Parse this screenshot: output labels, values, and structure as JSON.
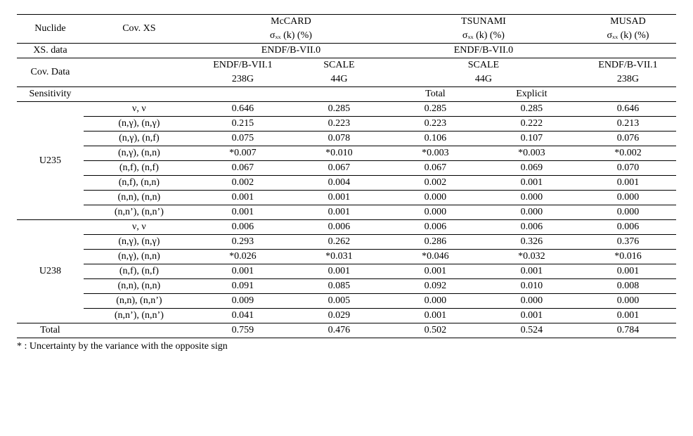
{
  "header": {
    "nuclide": "Nuclide",
    "covxs": "Cov. XS",
    "mccard": "McCARD",
    "tsunami": "TSUNAMI",
    "musad": "MUSAD",
    "sigma": "σₓₓ (k) (%)",
    "xs_data": "XS. data",
    "endf0": "ENDF/B-VII.0",
    "cov_data": "Cov. Data",
    "endf1_a": "ENDF/B-VII.1",
    "g238_a": "238G",
    "scale_a": "SCALE",
    "g44_a": "44G",
    "scale_b": "SCALE",
    "g44_b": "44G",
    "endf1_b": "ENDF/B-VII.1",
    "g238_b": "238G",
    "sensitivity": "Sensitivity",
    "total_lbl": "Total",
    "explicit_lbl": "Explicit"
  },
  "u235": {
    "label": "U235",
    "rows": [
      {
        "cov": "ν, ν",
        "a": "0.646",
        "b": "0.285",
        "c": "0.285",
        "d": "0.285",
        "e": "0.646"
      },
      {
        "cov": "(n,γ), (n,γ)",
        "a": "0.215",
        "b": "0.223",
        "c": "0.223",
        "d": "0.222",
        "e": "0.213"
      },
      {
        "cov": "(n,γ), (n,f)",
        "a": "0.075",
        "b": "0.078",
        "c": "0.106",
        "d": "0.107",
        "e": "0.076"
      },
      {
        "cov": "(n,γ), (n,n)",
        "a": "*0.007",
        "b": "*0.010",
        "c": "*0.003",
        "d": "*0.003",
        "e": "*0.002"
      },
      {
        "cov": "(n,f), (n,f)",
        "a": "0.067",
        "b": "0.067",
        "c": "0.067",
        "d": "0.069",
        "e": "0.070"
      },
      {
        "cov": "(n,f), (n,n)",
        "a": "0.002",
        "b": "0.004",
        "c": "0.002",
        "d": "0.001",
        "e": "0.001"
      },
      {
        "cov": "(n,n), (n,n)",
        "a": "0.001",
        "b": "0.001",
        "c": "0.000",
        "d": "0.000",
        "e": "0.000"
      },
      {
        "cov": "(n,n’), (n,n’)",
        "a": "0.001",
        "b": "0.001",
        "c": "0.000",
        "d": "0.000",
        "e": "0.000"
      }
    ]
  },
  "u238": {
    "label": "U238",
    "rows": [
      {
        "cov": "ν, ν",
        "a": "0.006",
        "b": "0.006",
        "c": "0.006",
        "d": "0.006",
        "e": "0.006"
      },
      {
        "cov": "(n,γ), (n,γ)",
        "a": "0.293",
        "b": "0.262",
        "c": "0.286",
        "d": "0.326",
        "e": "0.376"
      },
      {
        "cov": "(n,γ), (n,n)",
        "a": "*0.026",
        "b": "*0.031",
        "c": "*0.046",
        "d": "*0.032",
        "e": "*0.016"
      },
      {
        "cov": "(n,f), (n,f)",
        "a": "0.001",
        "b": "0.001",
        "c": "0.001",
        "d": "0.001",
        "e": "0.001"
      },
      {
        "cov": "(n,n), (n,n)",
        "a": "0.091",
        "b": "0.085",
        "c": "0.092",
        "d": "0.010",
        "e": "0.008"
      },
      {
        "cov": "(n,n), (n,n’)",
        "a": "0.009",
        "b": "0.005",
        "c": "0.000",
        "d": "0.000",
        "e": "0.000"
      },
      {
        "cov": "(n,n’), (n,n’)",
        "a": "0.041",
        "b": "0.029",
        "c": "0.001",
        "d": "0.001",
        "e": "0.001"
      }
    ]
  },
  "total_row": {
    "label": "Total",
    "a": "0.759",
    "b": "0.476",
    "c": "0.502",
    "d": "0.524",
    "e": "0.784"
  },
  "footnote": "* : Uncertainty by the variance with the opposite sign"
}
